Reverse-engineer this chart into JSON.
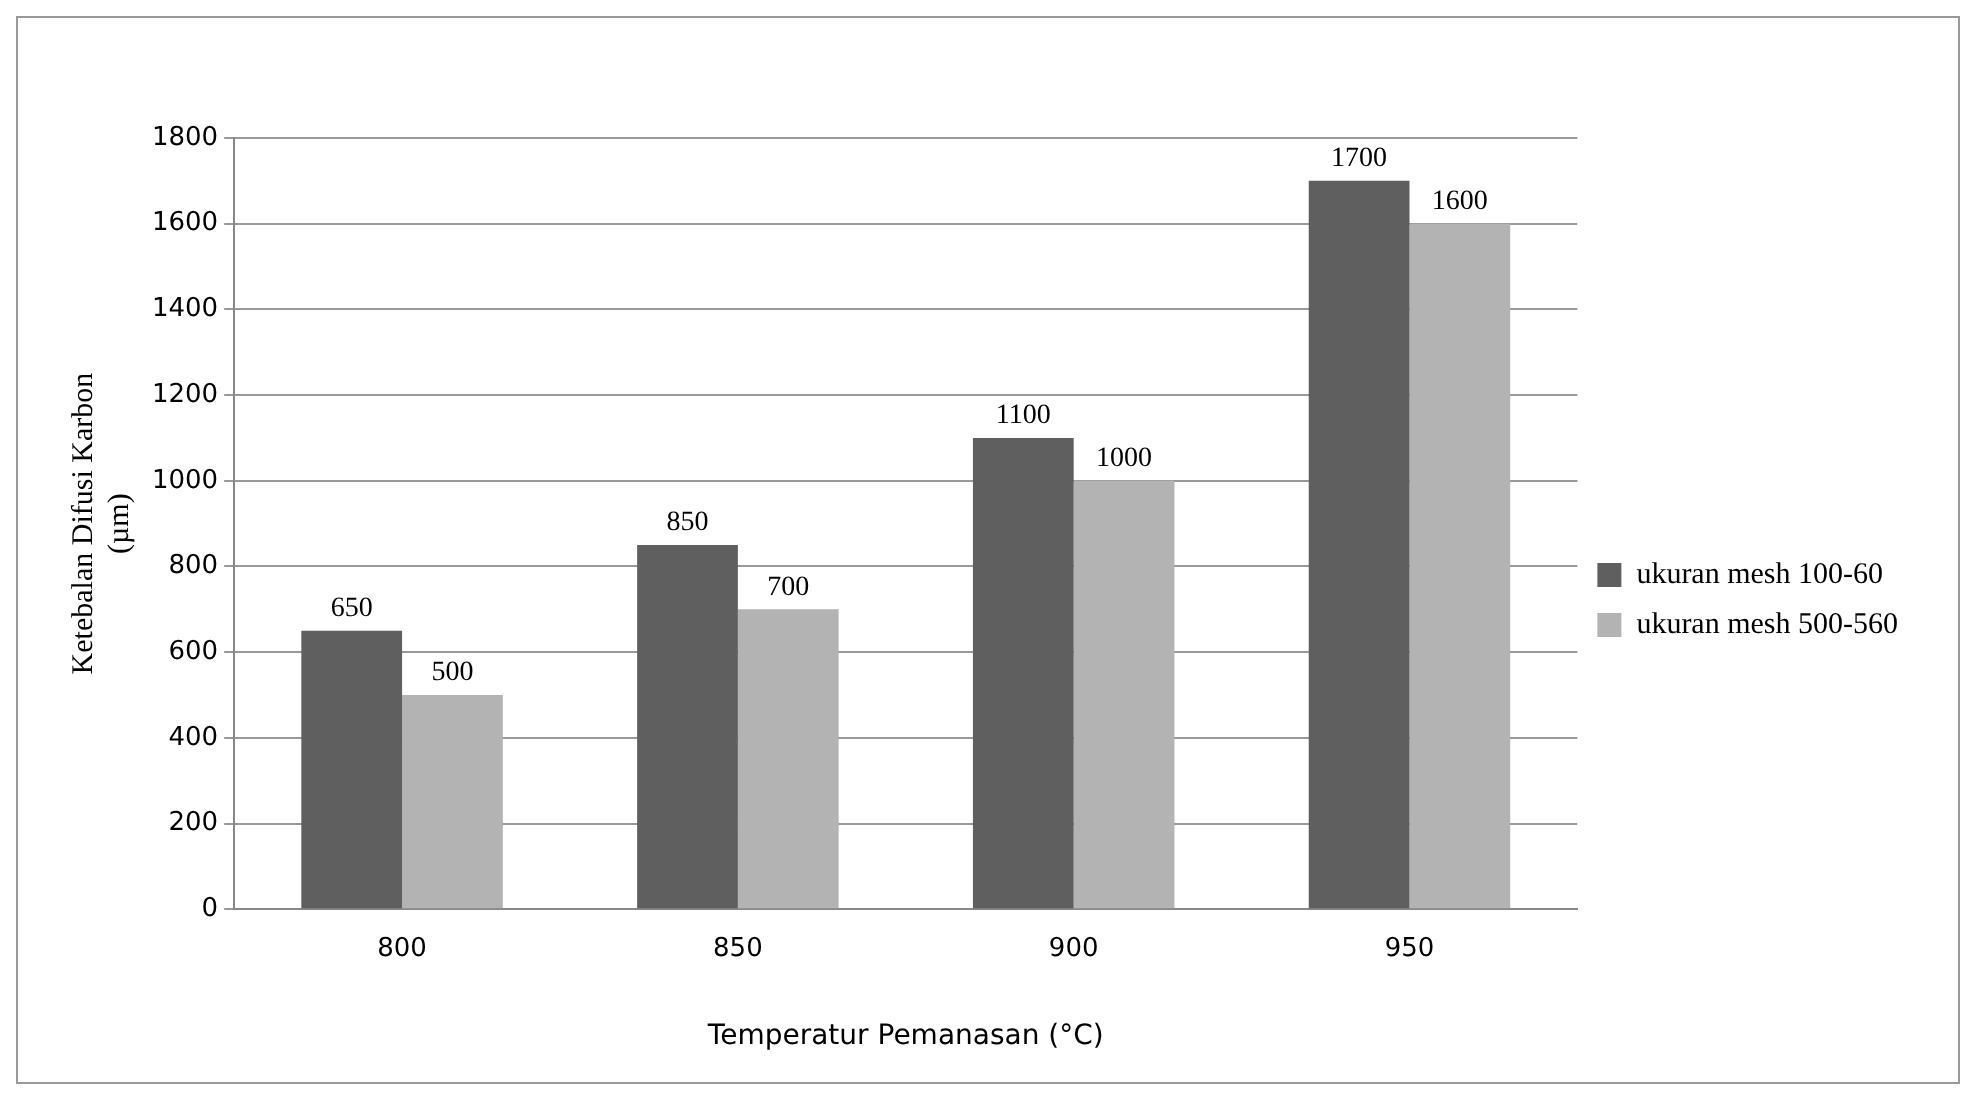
{
  "chart_data": {
    "type": "bar",
    "xlabel": "Temperatur Pemanasan (°C)",
    "ylabel": "Ketebalan Difusi Karbon\n(µm)",
    "categories": [
      "800",
      "850",
      "900",
      "950"
    ],
    "series": [
      {
        "name": "ukuran mesh 100-60",
        "color": "#5f5f5f",
        "values": [
          650,
          850,
          1100,
          1700
        ]
      },
      {
        "name": "ukuran mesh 500-560",
        "color": "#b3b3b3",
        "values": [
          500,
          700,
          1000,
          1600
        ]
      }
    ],
    "ylim": [
      0,
      1800
    ],
    "yticks": [
      0,
      200,
      400,
      600,
      800,
      1000,
      1200,
      1400,
      1600,
      1800
    ],
    "grid": "y",
    "legend": "right",
    "data_labels": true
  }
}
